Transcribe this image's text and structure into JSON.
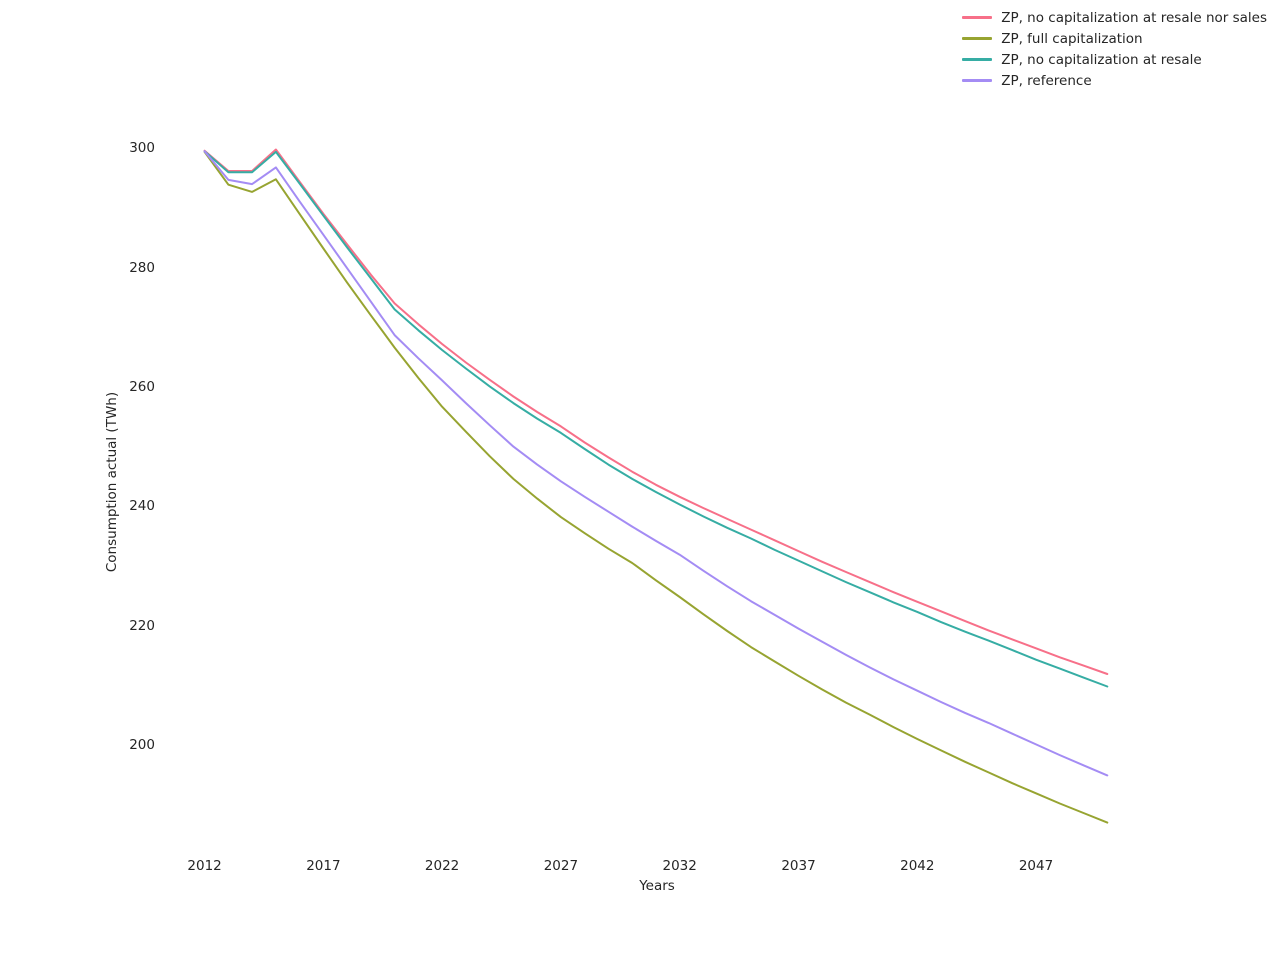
{
  "figure": {
    "background": "#ffffff",
    "text_color": "#262626"
  },
  "chart_data": {
    "type": "line",
    "title": "",
    "xlabel": "Years",
    "ylabel": "Consumption actual (TWh)",
    "grid": false,
    "axis_spines": false,
    "legend_position": "upper right",
    "x_ticks": [
      2012,
      2017,
      2022,
      2027,
      2032,
      2037,
      2042,
      2047
    ],
    "y_ticks": [
      200,
      220,
      240,
      260,
      280,
      300
    ],
    "xlim": [
      2012,
      2050
    ],
    "ylim": [
      185,
      302
    ],
    "x": [
      2012,
      2013,
      2014,
      2015,
      2016,
      2017,
      2018,
      2019,
      2020,
      2021,
      2022,
      2023,
      2024,
      2025,
      2026,
      2027,
      2028,
      2029,
      2030,
      2031,
      2032,
      2033,
      2034,
      2035,
      2036,
      2037,
      2038,
      2039,
      2040,
      2041,
      2042,
      2043,
      2044,
      2045,
      2046,
      2047,
      2048,
      2049,
      2050
    ],
    "series": [
      {
        "name": "ZP, no capitalization at resale nor sales",
        "color": "#f77089",
        "values": [
          299.6,
          296.2,
          296.2,
          299.8,
          294.4,
          289.0,
          283.9,
          278.8,
          274.0,
          270.5,
          267.2,
          264.1,
          261.2,
          258.4,
          255.8,
          253.4,
          250.7,
          248.2,
          245.8,
          243.6,
          241.6,
          239.7,
          237.9,
          236.1,
          234.3,
          232.5,
          230.7,
          229.0,
          227.3,
          225.6,
          224.0,
          222.4,
          220.8,
          219.2,
          217.7,
          216.2,
          214.7,
          213.3,
          211.9
        ]
      },
      {
        "name": "ZP, full capitalization",
        "color": "#97a431",
        "values": [
          299.4,
          293.9,
          292.7,
          294.8,
          289.0,
          283.2,
          277.5,
          272.0,
          266.6,
          261.5,
          256.7,
          252.5,
          248.4,
          244.6,
          241.3,
          238.2,
          235.5,
          232.9,
          230.5,
          227.6,
          224.8,
          221.9,
          219.1,
          216.4,
          214.0,
          211.6,
          209.3,
          207.1,
          205.1,
          203.0,
          201.0,
          199.1,
          197.2,
          195.4,
          193.6,
          191.9,
          190.2,
          188.6,
          187.0
        ]
      },
      {
        "name": "ZP, no capitalization at resale",
        "color": "#36ada4",
        "values": [
          299.5,
          296.0,
          296.0,
          299.4,
          294.1,
          288.7,
          283.4,
          278.2,
          273.0,
          269.5,
          266.2,
          263.1,
          260.1,
          257.3,
          254.7,
          252.3,
          249.6,
          247.0,
          244.6,
          242.4,
          240.3,
          238.3,
          236.4,
          234.6,
          232.7,
          230.9,
          229.1,
          227.3,
          225.6,
          223.9,
          222.3,
          220.6,
          219.0,
          217.5,
          215.9,
          214.3,
          212.8,
          211.3,
          209.8
        ]
      },
      {
        "name": "ZP, reference",
        "color": "#a48cf4",
        "values": [
          299.5,
          294.7,
          294.0,
          296.8,
          291.1,
          285.5,
          279.9,
          274.3,
          268.7,
          264.8,
          261.1,
          257.3,
          253.6,
          250.0,
          247.0,
          244.2,
          241.6,
          239.1,
          236.6,
          234.2,
          231.9,
          229.2,
          226.6,
          224.1,
          221.8,
          219.5,
          217.3,
          215.1,
          213.0,
          211.0,
          209.1,
          207.2,
          205.4,
          203.7,
          201.9,
          200.1,
          198.3,
          196.6,
          194.9
        ]
      }
    ]
  }
}
